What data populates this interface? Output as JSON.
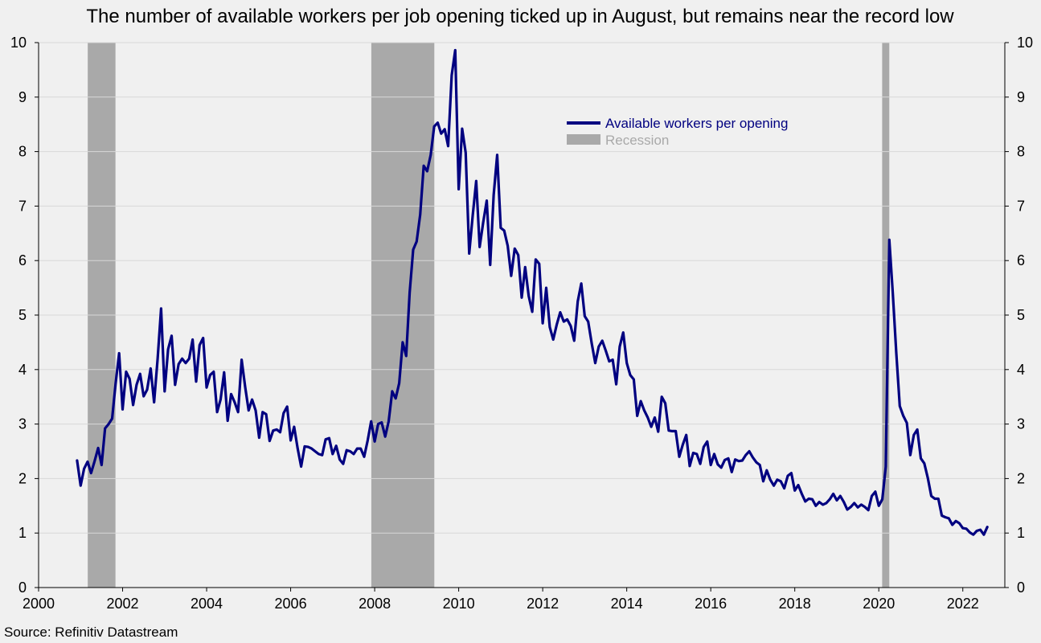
{
  "chart_data": {
    "type": "line",
    "title": "The number of available workers per job opening ticked up in August, but remains near the record low",
    "source": "Source: Refinitiv Datastream",
    "xlabel": "",
    "ylabel": "",
    "xlim": [
      2000,
      2023
    ],
    "ylim": [
      0,
      10
    ],
    "x_ticks": [
      "2000",
      "2002",
      "2004",
      "2006",
      "2008",
      "2010",
      "2012",
      "2014",
      "2016",
      "2018",
      "2020",
      "2022"
    ],
    "y_ticks": [
      "0",
      "1",
      "2",
      "3",
      "4",
      "5",
      "6",
      "7",
      "8",
      "9",
      "10"
    ],
    "grid": true,
    "legend_position": "top-center",
    "colors": {
      "series": "#000080",
      "recession": "#a9a9a9",
      "grid": "#d8d8d8",
      "background": "#f0f0f0"
    },
    "recessions": [
      {
        "start": 2001.17,
        "end": 2001.83
      },
      {
        "start": 2007.92,
        "end": 2009.42
      },
      {
        "start": 2020.08,
        "end": 2020.25
      }
    ],
    "series": [
      {
        "name": "Available workers per opening",
        "x": [
          2000.917,
          2001.0,
          2001.083,
          2001.167,
          2001.25,
          2001.333,
          2001.417,
          2001.5,
          2001.583,
          2001.667,
          2001.75,
          2001.833,
          2001.917,
          2002.0,
          2002.083,
          2002.167,
          2002.25,
          2002.333,
          2002.417,
          2002.5,
          2002.583,
          2002.667,
          2002.75,
          2002.833,
          2002.917,
          2003.0,
          2003.083,
          2003.167,
          2003.25,
          2003.333,
          2003.417,
          2003.5,
          2003.583,
          2003.667,
          2003.75,
          2003.833,
          2003.917,
          2004.0,
          2004.083,
          2004.167,
          2004.25,
          2004.333,
          2004.417,
          2004.5,
          2004.583,
          2004.667,
          2004.75,
          2004.833,
          2004.917,
          2005.0,
          2005.083,
          2005.167,
          2005.25,
          2005.333,
          2005.417,
          2005.5,
          2005.583,
          2005.667,
          2005.75,
          2005.833,
          2005.917,
          2006.0,
          2006.083,
          2006.167,
          2006.25,
          2006.333,
          2006.417,
          2006.5,
          2006.583,
          2006.667,
          2006.75,
          2006.833,
          2006.917,
          2007.0,
          2007.083,
          2007.167,
          2007.25,
          2007.333,
          2007.417,
          2007.5,
          2007.583,
          2007.667,
          2007.75,
          2007.833,
          2007.917,
          2008.0,
          2008.083,
          2008.167,
          2008.25,
          2008.333,
          2008.417,
          2008.5,
          2008.583,
          2008.667,
          2008.75,
          2008.833,
          2008.917,
          2009.0,
          2009.083,
          2009.167,
          2009.25,
          2009.333,
          2009.417,
          2009.5,
          2009.583,
          2009.667,
          2009.75,
          2009.833,
          2009.917,
          2010.0,
          2010.083,
          2010.167,
          2010.25,
          2010.333,
          2010.417,
          2010.5,
          2010.583,
          2010.667,
          2010.75,
          2010.833,
          2010.917,
          2011.0,
          2011.083,
          2011.167,
          2011.25,
          2011.333,
          2011.417,
          2011.5,
          2011.583,
          2011.667,
          2011.75,
          2011.833,
          2011.917,
          2012.0,
          2012.083,
          2012.167,
          2012.25,
          2012.333,
          2012.417,
          2012.5,
          2012.583,
          2012.667,
          2012.75,
          2012.833,
          2012.917,
          2013.0,
          2013.083,
          2013.167,
          2013.25,
          2013.333,
          2013.417,
          2013.5,
          2013.583,
          2013.667,
          2013.75,
          2013.833,
          2013.917,
          2014.0,
          2014.083,
          2014.167,
          2014.25,
          2014.333,
          2014.417,
          2014.5,
          2014.583,
          2014.667,
          2014.75,
          2014.833,
          2014.917,
          2015.0,
          2015.083,
          2015.167,
          2015.25,
          2015.333,
          2015.417,
          2015.5,
          2015.583,
          2015.667,
          2015.75,
          2015.833,
          2015.917,
          2016.0,
          2016.083,
          2016.167,
          2016.25,
          2016.333,
          2016.417,
          2016.5,
          2016.583,
          2016.667,
          2016.75,
          2016.833,
          2016.917,
          2017.0,
          2017.083,
          2017.167,
          2017.25,
          2017.333,
          2017.417,
          2017.5,
          2017.583,
          2017.667,
          2017.75,
          2017.833,
          2017.917,
          2018.0,
          2018.083,
          2018.167,
          2018.25,
          2018.333,
          2018.417,
          2018.5,
          2018.583,
          2018.667,
          2018.75,
          2018.833,
          2018.917,
          2019.0,
          2019.083,
          2019.167,
          2019.25,
          2019.333,
          2019.417,
          2019.5,
          2019.583,
          2019.667,
          2019.75,
          2019.833,
          2019.917,
          2020.0,
          2020.083,
          2020.167,
          2020.25,
          2020.333,
          2020.417,
          2020.5,
          2020.583,
          2020.667,
          2020.75,
          2020.833,
          2020.917,
          2021.0,
          2021.083,
          2021.167,
          2021.25,
          2021.333,
          2021.417,
          2021.5,
          2021.583,
          2021.667,
          2021.75,
          2021.833,
          2021.917,
          2022.0,
          2022.083,
          2022.167,
          2022.25,
          2022.333,
          2022.417,
          2022.5,
          2022.583
        ],
        "values": [
          2.33,
          1.87,
          2.18,
          2.31,
          2.1,
          2.32,
          2.56,
          2.25,
          2.92,
          3.0,
          3.1,
          3.74,
          4.3,
          3.27,
          3.96,
          3.83,
          3.35,
          3.72,
          3.92,
          3.51,
          3.63,
          4.02,
          3.4,
          4.2,
          5.12,
          3.6,
          4.37,
          4.62,
          3.72,
          4.1,
          4.2,
          4.12,
          4.2,
          4.55,
          3.78,
          4.45,
          4.58,
          3.67,
          3.9,
          3.96,
          3.22,
          3.45,
          3.95,
          3.06,
          3.55,
          3.4,
          3.22,
          4.18,
          3.68,
          3.25,
          3.45,
          3.25,
          2.75,
          3.22,
          3.18,
          2.69,
          2.88,
          2.9,
          2.85,
          3.2,
          3.32,
          2.7,
          2.95,
          2.55,
          2.22,
          2.59,
          2.58,
          2.55,
          2.5,
          2.45,
          2.43,
          2.72,
          2.74,
          2.45,
          2.6,
          2.35,
          2.27,
          2.52,
          2.5,
          2.45,
          2.55,
          2.55,
          2.4,
          2.7,
          3.05,
          2.68,
          3.0,
          3.03,
          2.77,
          3.05,
          3.6,
          3.47,
          3.75,
          4.5,
          4.25,
          5.41,
          6.2,
          6.35,
          6.84,
          7.74,
          7.64,
          7.94,
          8.46,
          8.53,
          8.33,
          8.41,
          8.1,
          9.4,
          9.86,
          7.31,
          8.42,
          7.98,
          6.13,
          6.82,
          7.46,
          6.25,
          6.7,
          7.1,
          5.92,
          7.2,
          7.94,
          6.6,
          6.55,
          6.27,
          5.72,
          6.22,
          6.1,
          5.32,
          5.88,
          5.35,
          5.06,
          6.02,
          5.94,
          4.85,
          5.5,
          4.78,
          4.55,
          4.82,
          5.05,
          4.88,
          4.92,
          4.8,
          4.53,
          5.25,
          5.58,
          4.98,
          4.88,
          4.48,
          4.12,
          4.42,
          4.53,
          4.35,
          4.15,
          4.18,
          3.73,
          4.42,
          4.68,
          4.12,
          3.9,
          3.82,
          3.15,
          3.42,
          3.25,
          3.12,
          2.95,
          3.12,
          2.86,
          3.5,
          3.38,
          2.88,
          2.87,
          2.87,
          2.4,
          2.62,
          2.8,
          2.23,
          2.47,
          2.45,
          2.27,
          2.58,
          2.68,
          2.25,
          2.45,
          2.26,
          2.2,
          2.34,
          2.37,
          2.12,
          2.35,
          2.32,
          2.33,
          2.43,
          2.5,
          2.39,
          2.3,
          2.25,
          1.95,
          2.15,
          1.98,
          1.87,
          1.98,
          1.95,
          1.82,
          2.05,
          2.1,
          1.78,
          1.88,
          1.72,
          1.58,
          1.63,
          1.62,
          1.5,
          1.57,
          1.52,
          1.55,
          1.62,
          1.72,
          1.6,
          1.68,
          1.57,
          1.43,
          1.48,
          1.55,
          1.47,
          1.52,
          1.48,
          1.42,
          1.68,
          1.76,
          1.5,
          1.62,
          2.22,
          6.38,
          5.41,
          4.3,
          3.33,
          3.15,
          3.02,
          2.43,
          2.8,
          2.9,
          2.37,
          2.28,
          2.01,
          1.68,
          1.63,
          1.63,
          1.32,
          1.29,
          1.27,
          1.15,
          1.22,
          1.18,
          1.09,
          1.08,
          1.01,
          0.97,
          1.04,
          1.06,
          0.97,
          1.11
        ]
      },
      {
        "name": "Recession"
      }
    ]
  }
}
